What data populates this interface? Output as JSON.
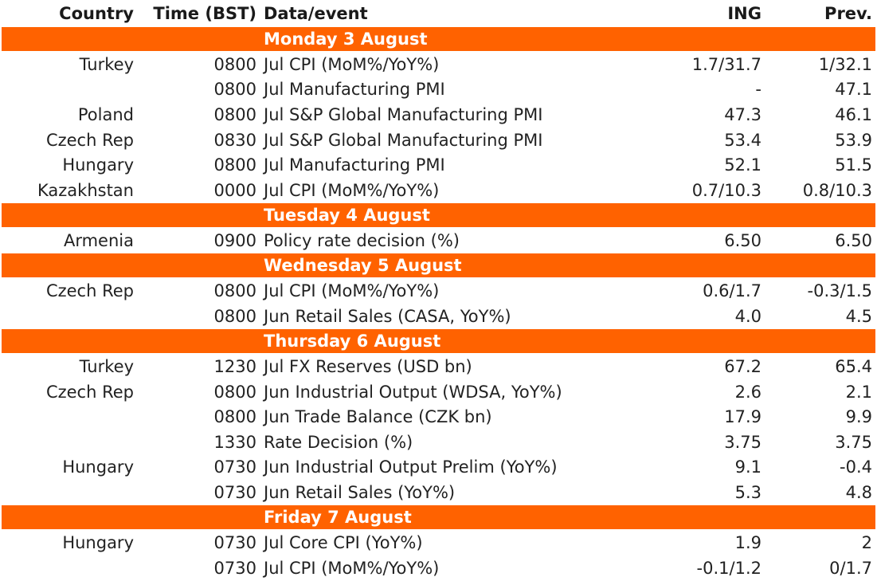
{
  "header": {
    "country": "Country",
    "time": "Time (BST)",
    "event": "Data/event",
    "ing": "ING",
    "prev": "Prev."
  },
  "days": [
    {
      "label": "Monday 3 August",
      "rows": [
        {
          "country": "Turkey",
          "time": "0800",
          "event": "Jul CPI (MoM%/YoY%)",
          "ing": "1.7/31.7",
          "prev": "1/32.1"
        },
        {
          "country": "",
          "time": "0800",
          "event": "Jul Manufacturing PMI",
          "ing": "-",
          "prev": "47.1"
        },
        {
          "country": "Poland",
          "time": "0800",
          "event": "Jul S&P Global Manufacturing PMI",
          "ing": "47.3",
          "prev": "46.1"
        },
        {
          "country": "Czech Rep",
          "time": "0830",
          "event": "Jul S&P Global Manufacturing PMI",
          "ing": "53.4",
          "prev": "53.9"
        },
        {
          "country": "Hungary",
          "time": "0800",
          "event": "Jul Manufacturing PMI",
          "ing": "52.1",
          "prev": "51.5"
        },
        {
          "country": "Kazakhstan",
          "time": "0000",
          "event": "Jul CPI (MoM%/YoY%)",
          "ing": "0.7/10.3",
          "prev": "0.8/10.3"
        }
      ]
    },
    {
      "label": "Tuesday 4 August",
      "rows": [
        {
          "country": "Armenia",
          "time": "0900",
          "event": "Policy rate decision (%)",
          "ing": "6.50",
          "prev": "6.50"
        }
      ]
    },
    {
      "label": "Wednesday 5 August",
      "rows": [
        {
          "country": "Czech Rep",
          "time": "0800",
          "event": "Jul CPI (MoM%/YoY%)",
          "ing": "0.6/1.7",
          "prev": "-0.3/1.5"
        },
        {
          "country": "",
          "time": "0800",
          "event": "Jun Retail Sales (CASA, YoY%)",
          "ing": "4.0",
          "prev": "4.5"
        }
      ]
    },
    {
      "label": "Thursday 6 August",
      "rows": [
        {
          "country": "Turkey",
          "time": "1230",
          "event": "Jul FX Reserves (USD bn)",
          "ing": "67.2",
          "prev": "65.4"
        },
        {
          "country": "Czech Rep",
          "time": "0800",
          "event": "Jun Industrial Output (WDSA, YoY%)",
          "ing": "2.6",
          "prev": "2.1"
        },
        {
          "country": "",
          "time": "0800",
          "event": "Jun Trade Balance (CZK bn)",
          "ing": "17.9",
          "prev": "9.9"
        },
        {
          "country": "",
          "time": "1330",
          "event": "Rate Decision (%)",
          "ing": "3.75",
          "prev": "3.75"
        },
        {
          "country": "Hungary",
          "time": "0730",
          "event": "Jun Industrial Output Prelim (YoY%)",
          "ing": "9.1",
          "prev": "-0.4"
        },
        {
          "country": "",
          "time": "0730",
          "event": "Jun Retail Sales (YoY%)",
          "ing": "5.3",
          "prev": "4.8"
        }
      ]
    },
    {
      "label": "Friday 7 August",
      "rows": [
        {
          "country": "Hungary",
          "time": "0730",
          "event": "Jul Core CPI (YoY%)",
          "ing": "1.9",
          "prev": "2"
        },
        {
          "country": "",
          "time": "0730",
          "event": "Jul CPI (MoM%/YoY%)",
          "ing": "-0.1/1.2",
          "prev": "0/1.7"
        }
      ]
    }
  ],
  "colors": {
    "day_band": "#ff6200",
    "day_text": "#ffffff",
    "text": "#222222"
  }
}
